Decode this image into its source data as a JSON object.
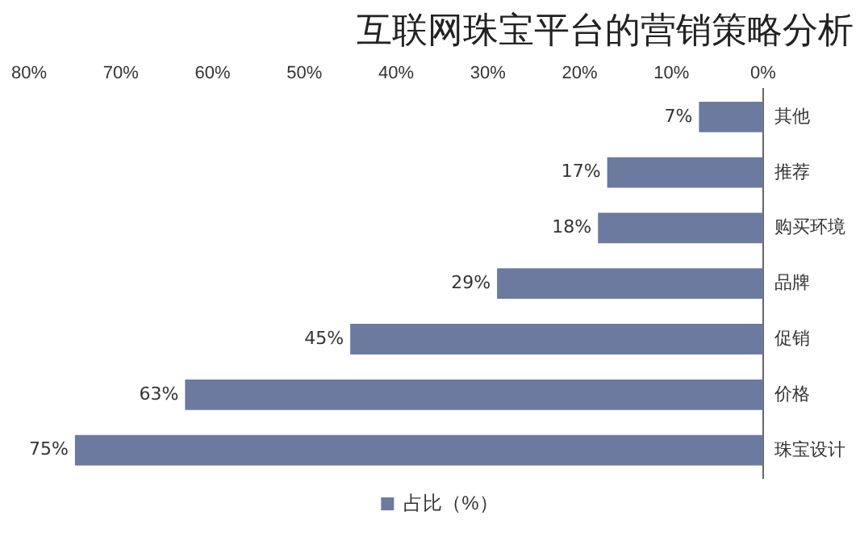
{
  "chart_data": {
    "type": "bar",
    "orientation": "horizontal",
    "title": "互联网珠宝平台的营销策略分析",
    "categories": [
      "其他",
      "推荐",
      "购买环境",
      "品牌",
      "促销",
      "价格",
      "珠宝设计"
    ],
    "series": [
      {
        "name": "占比（%）",
        "color": "#6b7a9e",
        "values": [
          7,
          17,
          18,
          29,
          45,
          63,
          75
        ],
        "value_labels": [
          "7%",
          "17%",
          "18%",
          "29%",
          "45%",
          "63%",
          "75%"
        ]
      }
    ],
    "xlim": [
      80,
      0
    ],
    "xticks": [
      {
        "value": 0,
        "label": "0%"
      },
      {
        "value": 10,
        "label": "10%"
      },
      {
        "value": 20,
        "label": "20%"
      },
      {
        "value": 30,
        "label": "30%"
      },
      {
        "value": 40,
        "label": "40%"
      },
      {
        "value": 50,
        "label": "50%"
      },
      {
        "value": 60,
        "label": "60%"
      },
      {
        "value": 70,
        "label": "70%"
      },
      {
        "value": 80,
        "label": "80%"
      }
    ],
    "grid": false,
    "legend": "bottom"
  }
}
